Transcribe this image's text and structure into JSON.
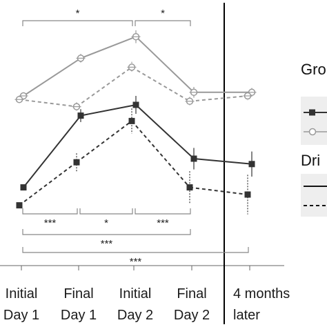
{
  "chart_data": {
    "type": "line",
    "categories": [
      [
        "Initial",
        "Day 1"
      ],
      [
        "Final",
        "Day 1"
      ],
      [
        "Initial",
        "Day 2"
      ],
      [
        "Final",
        "Day 2"
      ],
      [
        "4 months",
        "later"
      ]
    ],
    "series": [
      {
        "color": "#333333",
        "marker": "filled-square",
        "line": "solid",
        "values": [
          0.2,
          2.2,
          2.5,
          1.0,
          0.85
        ]
      },
      {
        "color": "#333333",
        "marker": "filled-square",
        "line": "dashed",
        "values": [
          -0.3,
          0.9,
          2.05,
          0.2,
          0.0
        ]
      },
      {
        "color": "#999999",
        "marker": "open-circle",
        "line": "solid",
        "values": [
          2.75,
          3.8,
          4.4,
          2.85,
          2.85
        ]
      },
      {
        "color": "#999999",
        "marker": "open-circle",
        "line": "dashed",
        "values": [
          2.65,
          2.45,
          3.55,
          2.6,
          2.75
        ]
      }
    ],
    "error": [
      [
        0.06,
        0.18,
        0.25,
        0.3,
        0.35
      ],
      [
        0.06,
        0.25,
        0.35,
        0.45,
        0.55
      ],
      [
        0.1,
        0.12,
        0.18,
        0.15,
        0.12
      ],
      [
        0.1,
        0.12,
        0.15,
        0.12,
        0.12
      ]
    ],
    "significance": [
      {
        "label": "*",
        "from": 0,
        "to": 2,
        "position": "top"
      },
      {
        "label": "*",
        "from": 2,
        "to": 3,
        "position": "top"
      },
      {
        "label": "***",
        "from": 0,
        "to": 1,
        "position": "bottom"
      },
      {
        "label": "*",
        "from": 1,
        "to": 2,
        "position": "bottom"
      },
      {
        "label": "***",
        "from": 2,
        "to": 3,
        "position": "bottom"
      },
      {
        "label": "***",
        "from": 0,
        "to": 3,
        "position": "bottom"
      },
      {
        "label": "***",
        "from": 0,
        "to": 4,
        "position": "bottom"
      }
    ],
    "legend": [
      {
        "title": "Gro"
      },
      {
        "title": "Dri"
      }
    ],
    "grid": false,
    "legend_position": "right"
  }
}
